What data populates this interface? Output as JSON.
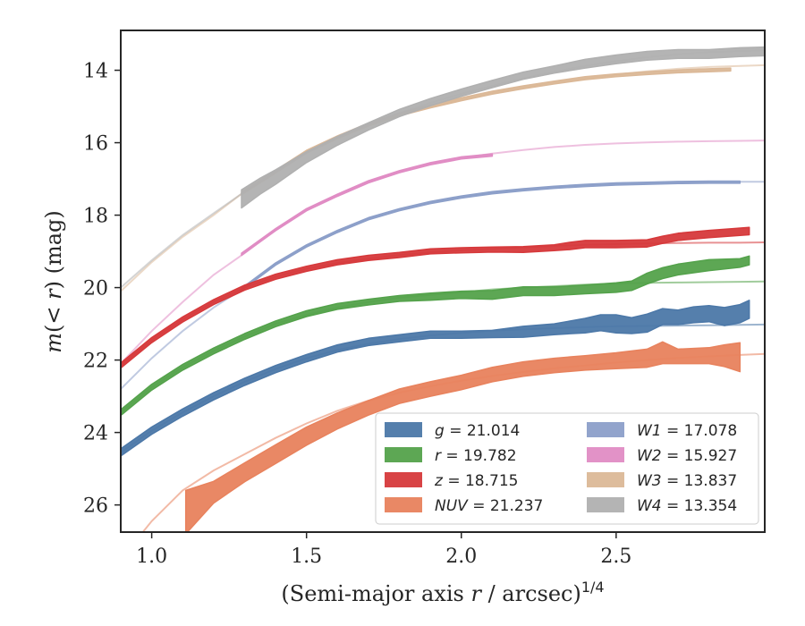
{
  "chart_data": {
    "type": "line",
    "xlabel": "(Semi-major axis r / arcsec)^{1/4}",
    "ylabel": "m(< r) (mag)",
    "xlim": [
      0.9,
      2.98
    ],
    "ylim": [
      26.75,
      12.9
    ],
    "y_inverted": true,
    "x_ticks": [
      1.0,
      1.5,
      2.0,
      2.5
    ],
    "x_tick_labels": [
      "1.0",
      "1.5",
      "2.0",
      "2.5"
    ],
    "y_ticks": [
      14,
      16,
      18,
      20,
      22,
      24,
      26
    ],
    "y_tick_labels": [
      "14",
      "16",
      "18",
      "20",
      "22",
      "24",
      "26"
    ],
    "grid": false,
    "legend_position": "lower-right",
    "series": [
      {
        "name": "g = 21.014",
        "var": "g",
        "value": "21.014",
        "color": "#4c78a8",
        "model": {
          "x": [
            0.9,
            1.0,
            1.1,
            1.2,
            1.3,
            1.4,
            1.5,
            1.6,
            1.7,
            1.8,
            1.9,
            2.0,
            2.1,
            2.2,
            2.3,
            2.4,
            2.5,
            2.6,
            2.7,
            2.8,
            2.9,
            2.98
          ],
          "y": [
            24.55,
            23.95,
            23.45,
            23.0,
            22.6,
            22.25,
            21.95,
            21.72,
            21.55,
            21.42,
            21.32,
            21.25,
            21.19,
            21.15,
            21.12,
            21.09,
            21.07,
            21.06,
            21.05,
            21.04,
            21.03,
            21.02
          ]
        },
        "band": {
          "x": [
            0.9,
            1.0,
            1.1,
            1.2,
            1.3,
            1.4,
            1.5,
            1.6,
            1.7,
            1.8,
            1.85,
            1.9,
            2.0,
            2.1,
            2.2,
            2.3,
            2.4,
            2.45,
            2.5,
            2.55,
            2.6,
            2.65,
            2.7,
            2.75,
            2.8,
            2.85,
            2.9,
            2.93
          ],
          "y": [
            24.55,
            23.95,
            23.45,
            23.0,
            22.6,
            22.25,
            21.95,
            21.68,
            21.5,
            21.4,
            21.35,
            21.3,
            21.3,
            21.28,
            21.22,
            21.15,
            21.05,
            20.97,
            21.0,
            21.05,
            20.98,
            20.8,
            20.82,
            20.75,
            20.72,
            20.8,
            20.72,
            20.6
          ],
          "halfwidth": [
            0.1,
            0.1,
            0.1,
            0.1,
            0.1,
            0.1,
            0.1,
            0.1,
            0.1,
            0.1,
            0.1,
            0.1,
            0.1,
            0.1,
            0.15,
            0.15,
            0.2,
            0.22,
            0.25,
            0.22,
            0.25,
            0.22,
            0.2,
            0.22,
            0.22,
            0.25,
            0.25,
            0.25
          ]
        }
      },
      {
        "name": "r = 19.782",
        "var": "r",
        "value": "19.782",
        "color": "#54a24b",
        "model": {
          "x": [
            0.9,
            1.0,
            1.1,
            1.2,
            1.3,
            1.4,
            1.5,
            1.6,
            1.7,
            1.8,
            1.9,
            2.0,
            2.1,
            2.2,
            2.3,
            2.4,
            2.5,
            2.6,
            2.7,
            2.8,
            2.9,
            2.98
          ],
          "y": [
            23.45,
            22.75,
            22.2,
            21.75,
            21.35,
            21.0,
            20.75,
            20.55,
            20.4,
            20.28,
            20.2,
            20.13,
            20.05,
            20.0,
            19.96,
            19.92,
            19.89,
            19.87,
            19.86,
            19.85,
            19.84,
            19.83
          ]
        },
        "band": {
          "x": [
            0.9,
            1.0,
            1.1,
            1.2,
            1.3,
            1.4,
            1.5,
            1.6,
            1.7,
            1.8,
            1.9,
            2.0,
            2.1,
            2.2,
            2.3,
            2.4,
            2.5,
            2.55,
            2.6,
            2.65,
            2.7,
            2.8,
            2.9,
            2.93
          ],
          "y": [
            23.45,
            22.75,
            22.2,
            21.75,
            21.35,
            21.0,
            20.72,
            20.52,
            20.4,
            20.3,
            20.25,
            20.2,
            20.2,
            20.1,
            20.1,
            20.05,
            20.0,
            19.95,
            19.75,
            19.6,
            19.5,
            19.38,
            19.32,
            19.25
          ],
          "halfwidth": [
            0.08,
            0.08,
            0.08,
            0.08,
            0.08,
            0.08,
            0.08,
            0.08,
            0.08,
            0.08,
            0.1,
            0.1,
            0.12,
            0.12,
            0.12,
            0.12,
            0.13,
            0.13,
            0.15,
            0.15,
            0.15,
            0.15,
            0.12,
            0.12
          ]
        }
      },
      {
        "name": "z = 18.715",
        "var": "z",
        "value": "18.715",
        "color": "#d6393b",
        "model": {
          "x": [
            0.9,
            1.0,
            1.1,
            1.2,
            1.3,
            1.4,
            1.5,
            1.6,
            1.7,
            1.8,
            1.9,
            2.0,
            2.1,
            2.2,
            2.3,
            2.4,
            2.5,
            2.6,
            2.7,
            2.8,
            2.9,
            2.98
          ],
          "y": [
            22.15,
            21.45,
            20.88,
            20.4,
            20.0,
            19.7,
            19.48,
            19.32,
            19.2,
            19.1,
            19.03,
            18.97,
            18.93,
            18.89,
            18.85,
            18.82,
            18.8,
            18.78,
            18.77,
            18.76,
            18.76,
            18.75
          ]
        },
        "band": {
          "x": [
            0.9,
            1.0,
            1.1,
            1.2,
            1.3,
            1.4,
            1.5,
            1.6,
            1.7,
            1.8,
            1.9,
            2.0,
            2.1,
            2.2,
            2.3,
            2.35,
            2.4,
            2.5,
            2.6,
            2.65,
            2.7,
            2.8,
            2.93
          ],
          "y": [
            22.15,
            21.45,
            20.88,
            20.4,
            20.0,
            19.7,
            19.48,
            19.3,
            19.18,
            19.1,
            19.0,
            18.97,
            18.95,
            18.95,
            18.9,
            18.85,
            18.8,
            18.8,
            18.78,
            18.68,
            18.6,
            18.52,
            18.44
          ],
          "halfwidth": [
            0.07,
            0.07,
            0.07,
            0.07,
            0.07,
            0.07,
            0.07,
            0.07,
            0.07,
            0.07,
            0.07,
            0.07,
            0.07,
            0.08,
            0.08,
            0.1,
            0.1,
            0.1,
            0.1,
            0.1,
            0.1,
            0.1,
            0.1
          ]
        }
      },
      {
        "name": "NUV = 21.237",
        "var": "NUV",
        "value": "21.237",
        "color": "#e8825d",
        "model": {
          "x": [
            0.9,
            1.0,
            1.1,
            1.2,
            1.3,
            1.4,
            1.5,
            1.6,
            1.7,
            1.8,
            1.9,
            2.0,
            2.1,
            2.2,
            2.3,
            2.4,
            2.5,
            2.6,
            2.7,
            2.8,
            2.9,
            2.98
          ],
          "y": [
            27.5,
            26.45,
            25.6,
            25.05,
            24.6,
            24.15,
            23.75,
            23.4,
            23.12,
            22.9,
            22.72,
            22.57,
            22.44,
            22.33,
            22.23,
            22.15,
            22.07,
            22.0,
            21.94,
            21.9,
            21.86,
            21.83
          ]
        },
        "band": {
          "x": [
            1.11,
            1.2,
            1.3,
            1.4,
            1.5,
            1.6,
            1.7,
            1.8,
            1.9,
            2.0,
            2.1,
            2.2,
            2.3,
            2.4,
            2.5,
            2.6,
            2.65,
            2.7,
            2.8,
            2.85,
            2.9
          ],
          "y": [
            26.2,
            25.65,
            25.1,
            24.6,
            24.1,
            23.68,
            23.32,
            23.0,
            22.8,
            22.62,
            22.4,
            22.25,
            22.15,
            22.08,
            22.02,
            21.95,
            21.8,
            21.9,
            21.88,
            21.88,
            21.92
          ],
          "halfwidth": [
            0.6,
            0.3,
            0.26,
            0.26,
            0.25,
            0.22,
            0.2,
            0.2,
            0.2,
            0.2,
            0.2,
            0.2,
            0.2,
            0.2,
            0.22,
            0.25,
            0.3,
            0.2,
            0.22,
            0.3,
            0.4
          ]
        }
      },
      {
        "name": "W1 = 17.078",
        "var": "W1",
        "value": "17.078",
        "color": "#8c9fc9",
        "model": {
          "x": [
            0.9,
            1.0,
            1.1,
            1.2,
            1.3,
            1.4,
            1.5,
            1.6,
            1.7,
            1.8,
            1.9,
            2.0,
            2.1,
            2.2,
            2.3,
            2.4,
            2.5,
            2.6,
            2.7,
            2.8,
            2.9,
            2.98
          ],
          "y": [
            22.8,
            21.95,
            21.2,
            20.55,
            20.0,
            19.35,
            18.85,
            18.45,
            18.1,
            17.85,
            17.65,
            17.5,
            17.38,
            17.3,
            17.23,
            17.18,
            17.14,
            17.12,
            17.1,
            17.09,
            17.08,
            17.08
          ]
        },
        "band": {
          "x": [
            1.29,
            1.4,
            1.5,
            1.6,
            1.7,
            1.8,
            1.9,
            2.0,
            2.1,
            2.2,
            2.3,
            2.4,
            2.5,
            2.6,
            2.7,
            2.8,
            2.9
          ],
          "y": [
            20.05,
            19.35,
            18.85,
            18.45,
            18.1,
            17.85,
            17.65,
            17.5,
            17.38,
            17.3,
            17.23,
            17.18,
            17.14,
            17.12,
            17.1,
            17.09,
            17.09
          ],
          "halfwidth": [
            0.03,
            0.03,
            0.03,
            0.03,
            0.03,
            0.03,
            0.03,
            0.03,
            0.03,
            0.03,
            0.03,
            0.03,
            0.03,
            0.03,
            0.03,
            0.03,
            0.03
          ]
        }
      },
      {
        "name": "W2 = 15.927",
        "var": "W2",
        "value": "15.927",
        "color": "#e08cc4",
        "model": {
          "x": [
            0.9,
            1.0,
            1.1,
            1.2,
            1.3,
            1.4,
            1.5,
            1.6,
            1.7,
            1.8,
            1.9,
            2.0,
            2.1,
            2.2,
            2.3,
            2.4,
            2.5,
            2.6,
            2.7,
            2.8,
            2.9,
            2.98
          ],
          "y": [
            22.1,
            21.2,
            20.4,
            19.65,
            19.05,
            18.4,
            17.85,
            17.45,
            17.08,
            16.8,
            16.58,
            16.42,
            16.3,
            16.2,
            16.12,
            16.06,
            16.02,
            15.99,
            15.97,
            15.96,
            15.95,
            15.94
          ]
        },
        "band": {
          "x": [
            1.29,
            1.4,
            1.5,
            1.6,
            1.7,
            1.8,
            1.9,
            2.0,
            2.1
          ],
          "y": [
            19.08,
            18.4,
            17.85,
            17.45,
            17.08,
            16.8,
            16.58,
            16.42,
            16.34
          ],
          "halfwidth": [
            0.03,
            0.03,
            0.03,
            0.03,
            0.03,
            0.03,
            0.03,
            0.03,
            0.03
          ]
        }
      },
      {
        "name": "W3 = 13.837",
        "var": "W3",
        "value": "13.837",
        "color": "#dbb897",
        "model": {
          "x": [
            0.9,
            1.0,
            1.1,
            1.2,
            1.3,
            1.4,
            1.5,
            1.6,
            1.7,
            1.8,
            1.9,
            2.0,
            2.1,
            2.2,
            2.3,
            2.4,
            2.5,
            2.6,
            2.7,
            2.8,
            2.9,
            2.98
          ],
          "y": [
            20.1,
            19.3,
            18.6,
            18.0,
            17.35,
            16.8,
            16.25,
            15.85,
            15.5,
            15.22,
            15.0,
            14.8,
            14.62,
            14.47,
            14.34,
            14.22,
            14.12,
            14.03,
            13.96,
            13.91,
            13.88,
            13.86
          ]
        },
        "band": {
          "x": [
            1.29,
            1.4,
            1.5,
            1.6,
            1.7,
            1.8,
            1.9,
            2.0,
            2.1,
            2.2,
            2.3,
            2.4,
            2.5,
            2.6,
            2.7,
            2.8,
            2.87
          ],
          "y": [
            17.4,
            16.8,
            16.25,
            15.85,
            15.5,
            15.22,
            15.0,
            14.8,
            14.62,
            14.47,
            14.34,
            14.22,
            14.14,
            14.08,
            14.03,
            14.0,
            13.98
          ],
          "halfwidth": [
            0.04,
            0.04,
            0.04,
            0.04,
            0.04,
            0.04,
            0.04,
            0.04,
            0.04,
            0.04,
            0.04,
            0.04,
            0.04,
            0.04,
            0.04,
            0.04,
            0.04
          ]
        }
      },
      {
        "name": "W4 = 13.354",
        "var": "W4",
        "value": "13.354",
        "color": "#b0b0b0",
        "model": {
          "x": [
            0.9,
            1.0,
            1.1,
            1.2,
            1.3,
            1.4,
            1.5,
            1.6,
            1.7,
            1.8,
            1.9,
            2.0,
            2.1,
            2.2,
            2.3,
            2.4,
            2.5,
            2.6,
            2.7,
            2.8,
            2.9,
            2.98
          ],
          "y": [
            20.0,
            19.25,
            18.55,
            17.95,
            17.35,
            16.8,
            16.28,
            15.85,
            15.5,
            15.18,
            14.9,
            14.65,
            14.43,
            14.22,
            14.04,
            13.88,
            13.75,
            13.64,
            13.56,
            13.5,
            13.47,
            13.45
          ]
        },
        "band": {
          "x": [
            1.29,
            1.35,
            1.4,
            1.5,
            1.6,
            1.7,
            1.8,
            1.9,
            2.0,
            2.1,
            2.2,
            2.3,
            2.4,
            2.5,
            2.6,
            2.7,
            2.8,
            2.9,
            2.98
          ],
          "y": [
            17.55,
            17.2,
            16.95,
            16.4,
            15.95,
            15.55,
            15.18,
            14.88,
            14.62,
            14.38,
            14.15,
            13.98,
            13.82,
            13.7,
            13.6,
            13.55,
            13.55,
            13.5,
            13.48
          ],
          "halfwidth": [
            0.25,
            0.22,
            0.2,
            0.15,
            0.12,
            0.1,
            0.1,
            0.1,
            0.1,
            0.1,
            0.1,
            0.1,
            0.12,
            0.12,
            0.12,
            0.12,
            0.12,
            0.12,
            0.12
          ]
        }
      }
    ],
    "legend": {
      "columns": [
        [
          "g = 21.014",
          "r = 19.782",
          "z = 18.715",
          "NUV = 21.237"
        ],
        [
          "W1 = 17.078",
          "W2 = 15.927",
          "W3 = 13.837",
          "W4 = 13.354"
        ]
      ]
    }
  }
}
